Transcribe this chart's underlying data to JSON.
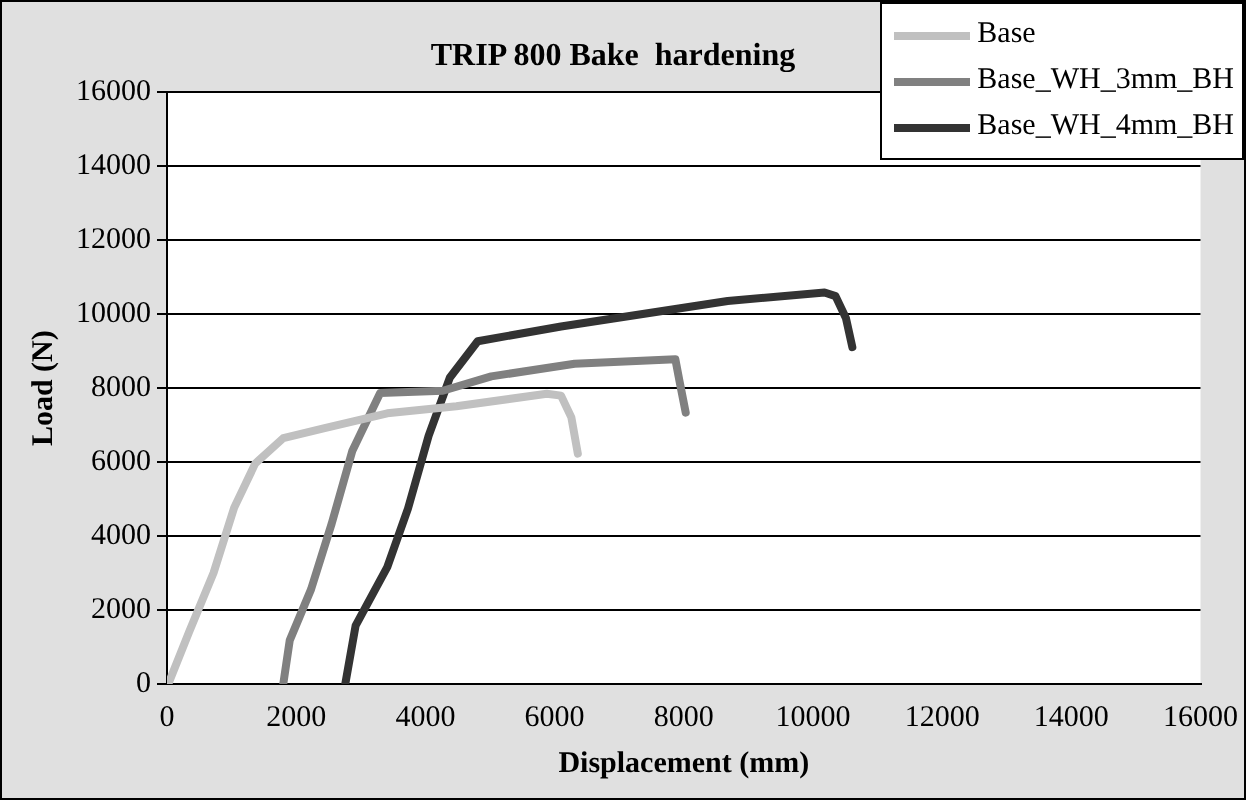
{
  "chart_data": {
    "type": "line",
    "title": "TRIP 800 Bake  hardening",
    "xlabel": "Displacement (mm)",
    "ylabel": "Load (N)",
    "xlim": [
      0,
      16000
    ],
    "xticks": [
      0,
      2000,
      4000,
      6000,
      8000,
      10000,
      12000,
      14000,
      16000
    ],
    "ylim": [
      0,
      16000
    ],
    "yticks": [
      0,
      2000,
      4000,
      6000,
      8000,
      10000,
      12000,
      14000,
      16000
    ],
    "grid": "y",
    "legend": "top right",
    "marker": "none",
    "line_style": "solid",
    "series": [
      {
        "name": "Base",
        "color": "#c0c0c0",
        "x": [
          20,
          345,
          720,
          1040,
          1365,
          1800,
          2440,
          3410,
          4480,
          5880,
          6100,
          6260,
          6360
        ],
        "values": [
          0,
          1420,
          3000,
          4770,
          5960,
          6650,
          6920,
          7320,
          7510,
          7850,
          7800,
          7210,
          6230
        ]
      },
      {
        "name": "Base_WH_3mm_BH",
        "color": "#808080",
        "x": [
          1800,
          1900,
          2230,
          2550,
          2870,
          3300,
          4270,
          5020,
          6310,
          7870,
          7930,
          8030
        ],
        "values": [
          0,
          1180,
          2560,
          4340,
          6310,
          7870,
          7930,
          8320,
          8660,
          8780,
          8230,
          7340
        ]
      },
      {
        "name": "Base_WH_4mm_BH",
        "color": "#333333",
        "x": [
          2760,
          2920,
          3410,
          3730,
          4050,
          4380,
          4810,
          6100,
          8680,
          10180,
          10350,
          10510,
          10610
        ],
        "values": [
          0,
          1580,
          3160,
          4740,
          6710,
          8290,
          9270,
          9670,
          10360,
          10590,
          10490,
          9900,
          9110
        ]
      }
    ]
  }
}
